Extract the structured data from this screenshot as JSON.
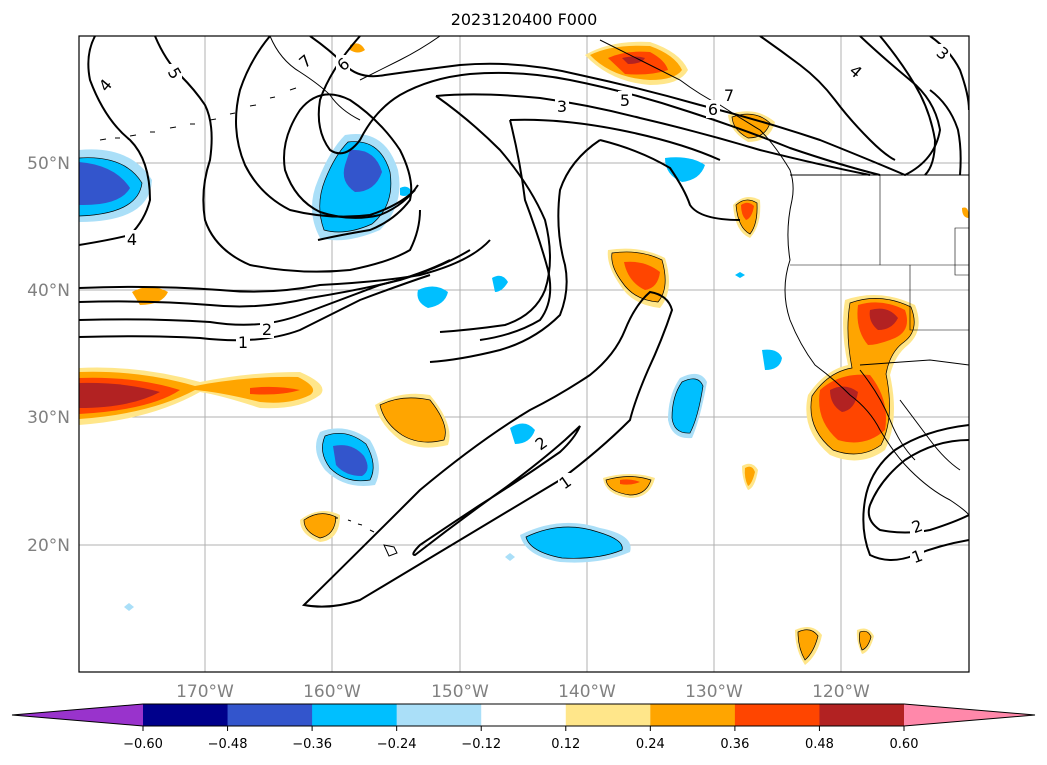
{
  "title": "2023120400 F000",
  "latitude_labels": [
    "50°N",
    "40°N",
    "30°N",
    "20°N"
  ],
  "longitude_labels": [
    "170°W",
    "160°W",
    "150°W",
    "140°W",
    "130°W",
    "120°W"
  ],
  "colorbar": {
    "tick_labels": [
      "−0.60",
      "−0.48",
      "−0.36",
      "−0.24",
      "−0.12",
      "0.12",
      "0.24",
      "0.36",
      "0.48",
      "0.60"
    ],
    "colors": [
      "#9933cc",
      "#00008b",
      "#3355cc",
      "#00bfff",
      "#aadff8",
      "#ffffff",
      "#ffe68a",
      "#ffa500",
      "#ff4500",
      "#b22222",
      "#ff88aa"
    ]
  },
  "contour_labels": [
    "4",
    "5",
    "7",
    "6",
    "3",
    "5",
    "7",
    "6",
    "4",
    "3",
    "4",
    "2",
    "1",
    "2",
    "1",
    "2",
    "1"
  ],
  "colors": {
    "grid": "#b0b0b0",
    "contour": "#000000",
    "coast": "#000000"
  }
}
